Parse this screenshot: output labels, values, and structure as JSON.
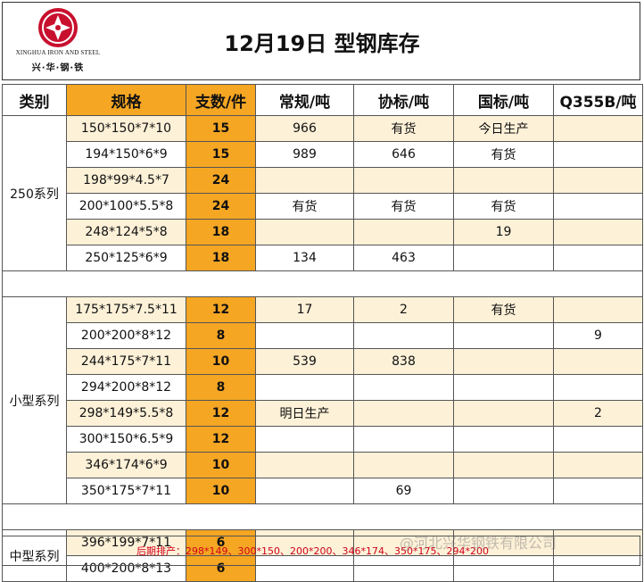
{
  "logo": {
    "en_text": "XINGHUA IRON AND STEEL",
    "cn_text": "兴·华·钢·铁",
    "brand_color": "#c8102e"
  },
  "title": "12月19日 型钢库存",
  "headers": [
    "类别",
    "规格",
    "支数/件",
    "常规/吨",
    "协标/吨",
    "国标/吨",
    "Q355B/吨"
  ],
  "categories": {
    "c250": "250系列",
    "small": "小型系列",
    "medium": "中型系列"
  },
  "rows": [
    {
      "spec": "150*150*7*10",
      "count": "15",
      "regular": "966",
      "xiebiao": "有货",
      "guobiao": "今日生产",
      "q355b": ""
    },
    {
      "spec": "194*150*6*9",
      "count": "15",
      "regular": "989",
      "xiebiao": "646",
      "guobiao": "有货",
      "q355b": ""
    },
    {
      "spec": "198*99*4.5*7",
      "count": "24",
      "regular": "",
      "xiebiao": "",
      "guobiao": "",
      "q355b": ""
    },
    {
      "spec": "200*100*5.5*8",
      "count": "24",
      "regular": "有货",
      "xiebiao": "有货",
      "guobiao": "有货",
      "q355b": ""
    },
    {
      "spec": "248*124*5*8",
      "count": "18",
      "regular": "",
      "xiebiao": "",
      "guobiao": "19",
      "q355b": ""
    },
    {
      "spec": "250*125*6*9",
      "count": "18",
      "regular": "134",
      "xiebiao": "463",
      "guobiao": "",
      "q355b": ""
    },
    {
      "spec": "175*175*7.5*11",
      "count": "12",
      "regular": "17",
      "xiebiao": "2",
      "guobiao": "有货",
      "q355b": ""
    },
    {
      "spec": "200*200*8*12",
      "count": "8",
      "regular": "",
      "xiebiao": "",
      "guobiao": "",
      "q355b": "9"
    },
    {
      "spec": "244*175*7*11",
      "count": "10",
      "regular": "539",
      "xiebiao": "838",
      "guobiao": "",
      "q355b": ""
    },
    {
      "spec": "294*200*8*12",
      "count": "8",
      "regular": "",
      "xiebiao": "",
      "guobiao": "",
      "q355b": ""
    },
    {
      "spec": "298*149*5.5*8",
      "count": "12",
      "regular": "明日生产",
      "xiebiao": "",
      "guobiao": "",
      "q355b": "2"
    },
    {
      "spec": "300*150*6.5*9",
      "count": "12",
      "regular": "",
      "xiebiao": "",
      "guobiao": "",
      "q355b": ""
    },
    {
      "spec": "346*174*6*9",
      "count": "10",
      "regular": "",
      "xiebiao": "",
      "guobiao": "",
      "q355b": ""
    },
    {
      "spec": "350*175*7*11",
      "count": "10",
      "regular": "",
      "xiebiao": "69",
      "guobiao": "",
      "q355b": ""
    },
    {
      "spec": "396*199*7*11",
      "count": "6",
      "regular": "",
      "xiebiao": "",
      "guobiao": "",
      "q355b": ""
    },
    {
      "spec": "400*200*8*13",
      "count": "6",
      "regular": "",
      "xiebiao": "",
      "guobiao": "",
      "q355b": ""
    }
  ],
  "footer": "后期排产：298*149、300*150、200*200、346*174、350*175、294*200",
  "watermark": "@河北兴华钢铁有限公司",
  "colors": {
    "orange": "#f5a623",
    "light": "#fdf1d8",
    "red": "#d0021b"
  }
}
